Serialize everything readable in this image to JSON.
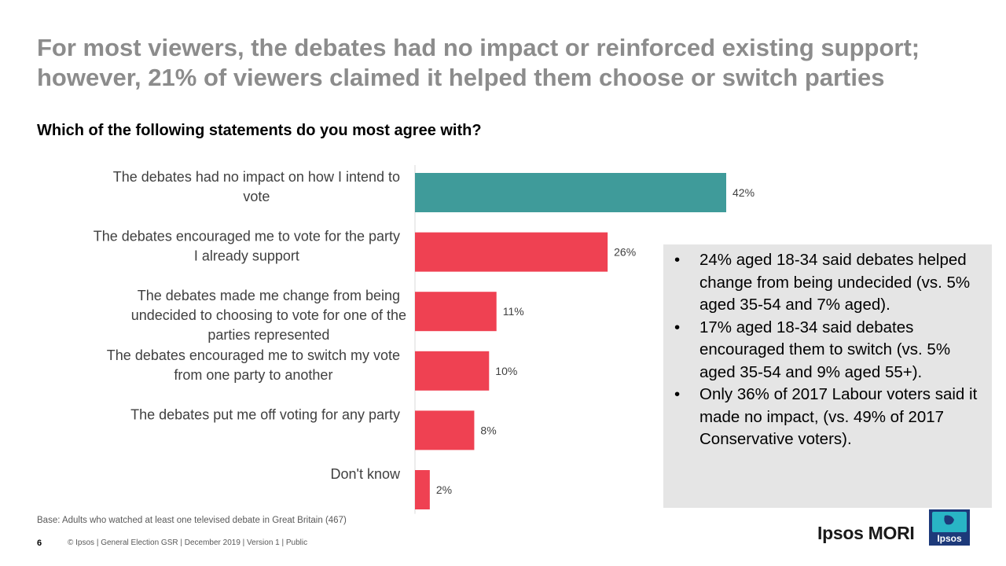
{
  "title": "For most viewers, the debates had no impact or reinforced existing support; however, 21% of viewers claimed it helped them choose or switch parties",
  "question": "Which of the following statements do you most agree with?",
  "colors": {
    "highlight": "#3f9b9a",
    "bar": "#ef4152",
    "title": "#8c8c8c"
  },
  "chart_data": {
    "type": "bar",
    "orientation": "horizontal",
    "categories": [
      [
        "The debates had no impact on how I intend to",
        "vote"
      ],
      [
        "The debates encouraged me to vote for the party",
        "I already support"
      ],
      [
        "The debates made me change from being",
        "undecided to choosing to vote for one of the",
        "parties represented"
      ],
      [
        "The debates encouraged me to switch my vote",
        "from one party to another"
      ],
      [
        "The debates put me off voting for any party"
      ],
      [
        "Don't know"
      ]
    ],
    "values": [
      42,
      26,
      11,
      10,
      8,
      2
    ],
    "value_labels": [
      "42%",
      "26%",
      "11%",
      "10%",
      "8%",
      "2%"
    ],
    "xlim": [
      0,
      45
    ],
    "highlight_index": 0
  },
  "callout": {
    "bullets": [
      "24% aged 18-34 said debates helped change from being undecided (vs. 5% aged 35-54 and 7% aged).",
      "17% aged 18-34 said debates encouraged them to switch (vs. 5% aged 35-54 and 9% aged 55+).",
      "Only 36% of 2017 Labour voters said it made no impact, (vs. 49% of 2017 Conservative voters)."
    ],
    "bullet_glyph": "•"
  },
  "base_note": "Base: Adults who watched at least one televised debate in Great Britain (467)",
  "page_number": "6",
  "footer": "© Ipsos | General Election GSR | December 2019 | Version 1 | Public",
  "brand": "Ipsos MORI",
  "logo_text": "Ipsos"
}
